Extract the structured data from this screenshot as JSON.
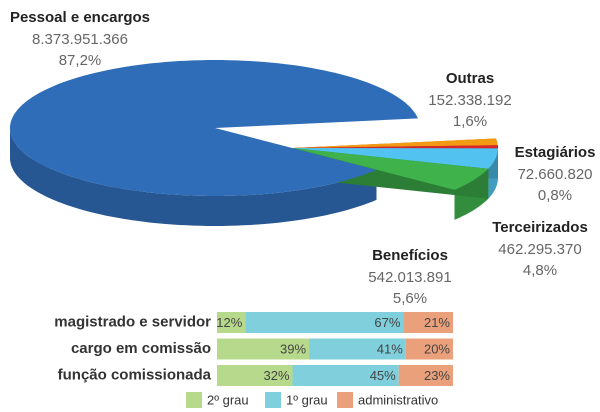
{
  "chart_data": [
    {
      "type": "pie",
      "categories": [
        "Pessoal e encargos",
        "Outras",
        "Estagiários",
        "Terceirizados",
        "Benefícios"
      ],
      "values": [
        8373951366,
        152338192,
        72660820,
        462295370,
        542013891
      ],
      "value_labels": [
        "8.373.951.366",
        "152.338.192",
        "72.660.820",
        "462.295.370",
        "542.013.891"
      ],
      "percents": [
        87.2,
        1.6,
        0.8,
        4.8,
        5.6
      ],
      "percent_labels": [
        "87,2%",
        "1,6%",
        "0,8%",
        "4,8%",
        "5,6%"
      ],
      "colors": [
        "#2f6db8",
        "#f39a14",
        "#d8262c",
        "#52c3f0",
        "#3fb24b"
      ]
    },
    {
      "type": "stacked_barh",
      "categories": [
        "magistrado e servidor",
        "cargo em comissão",
        "função comissionada"
      ],
      "series": [
        {
          "name": "2º grau",
          "color": "#b7d98c",
          "values": [
            12,
            39,
            32
          ],
          "value_labels": [
            "12%",
            "39%",
            "32%"
          ]
        },
        {
          "name": "1º grau",
          "color": "#7fcfdc",
          "values": [
            67,
            41,
            45
          ],
          "value_labels": [
            "67%",
            "41%",
            "45%"
          ]
        },
        {
          "name": "administrativo",
          "color": "#eaa07b",
          "values": [
            21,
            20,
            23
          ],
          "value_labels": [
            "21%",
            "20%",
            "23%"
          ]
        }
      ],
      "xlim": [
        0,
        100
      ],
      "legend": "bottom"
    }
  ]
}
